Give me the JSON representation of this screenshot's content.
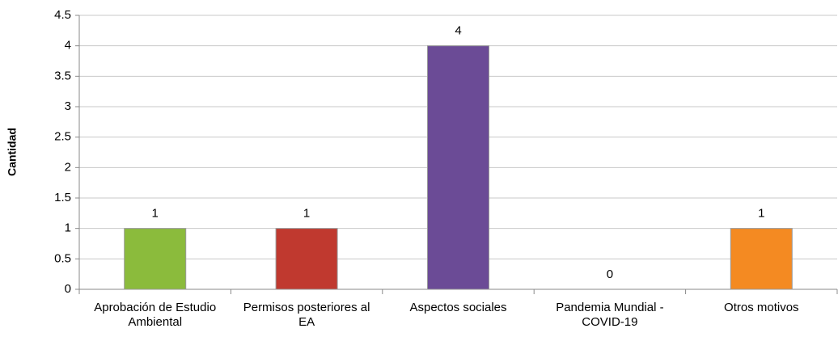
{
  "chart_data": {
    "type": "bar",
    "y_label": "Cantidad",
    "categories": [
      "Aprobación de Estudio Ambiental",
      "Permisos posteriores al EA",
      "Aspectos sociales",
      "Pandemia Mundial - COVID-19",
      "Otros motivos"
    ],
    "values": [
      1,
      1,
      4,
      0,
      1
    ],
    "colors": [
      "#8bbb3c",
      "#c0392f",
      "#6b4b96",
      "#6b4b96",
      "#f48a22"
    ],
    "ylim": [
      0,
      4.5
    ],
    "yticks": [
      0,
      0.5,
      1,
      1.5,
      2,
      2.5,
      3,
      3.5,
      4,
      4.5
    ],
    "grid": true
  }
}
